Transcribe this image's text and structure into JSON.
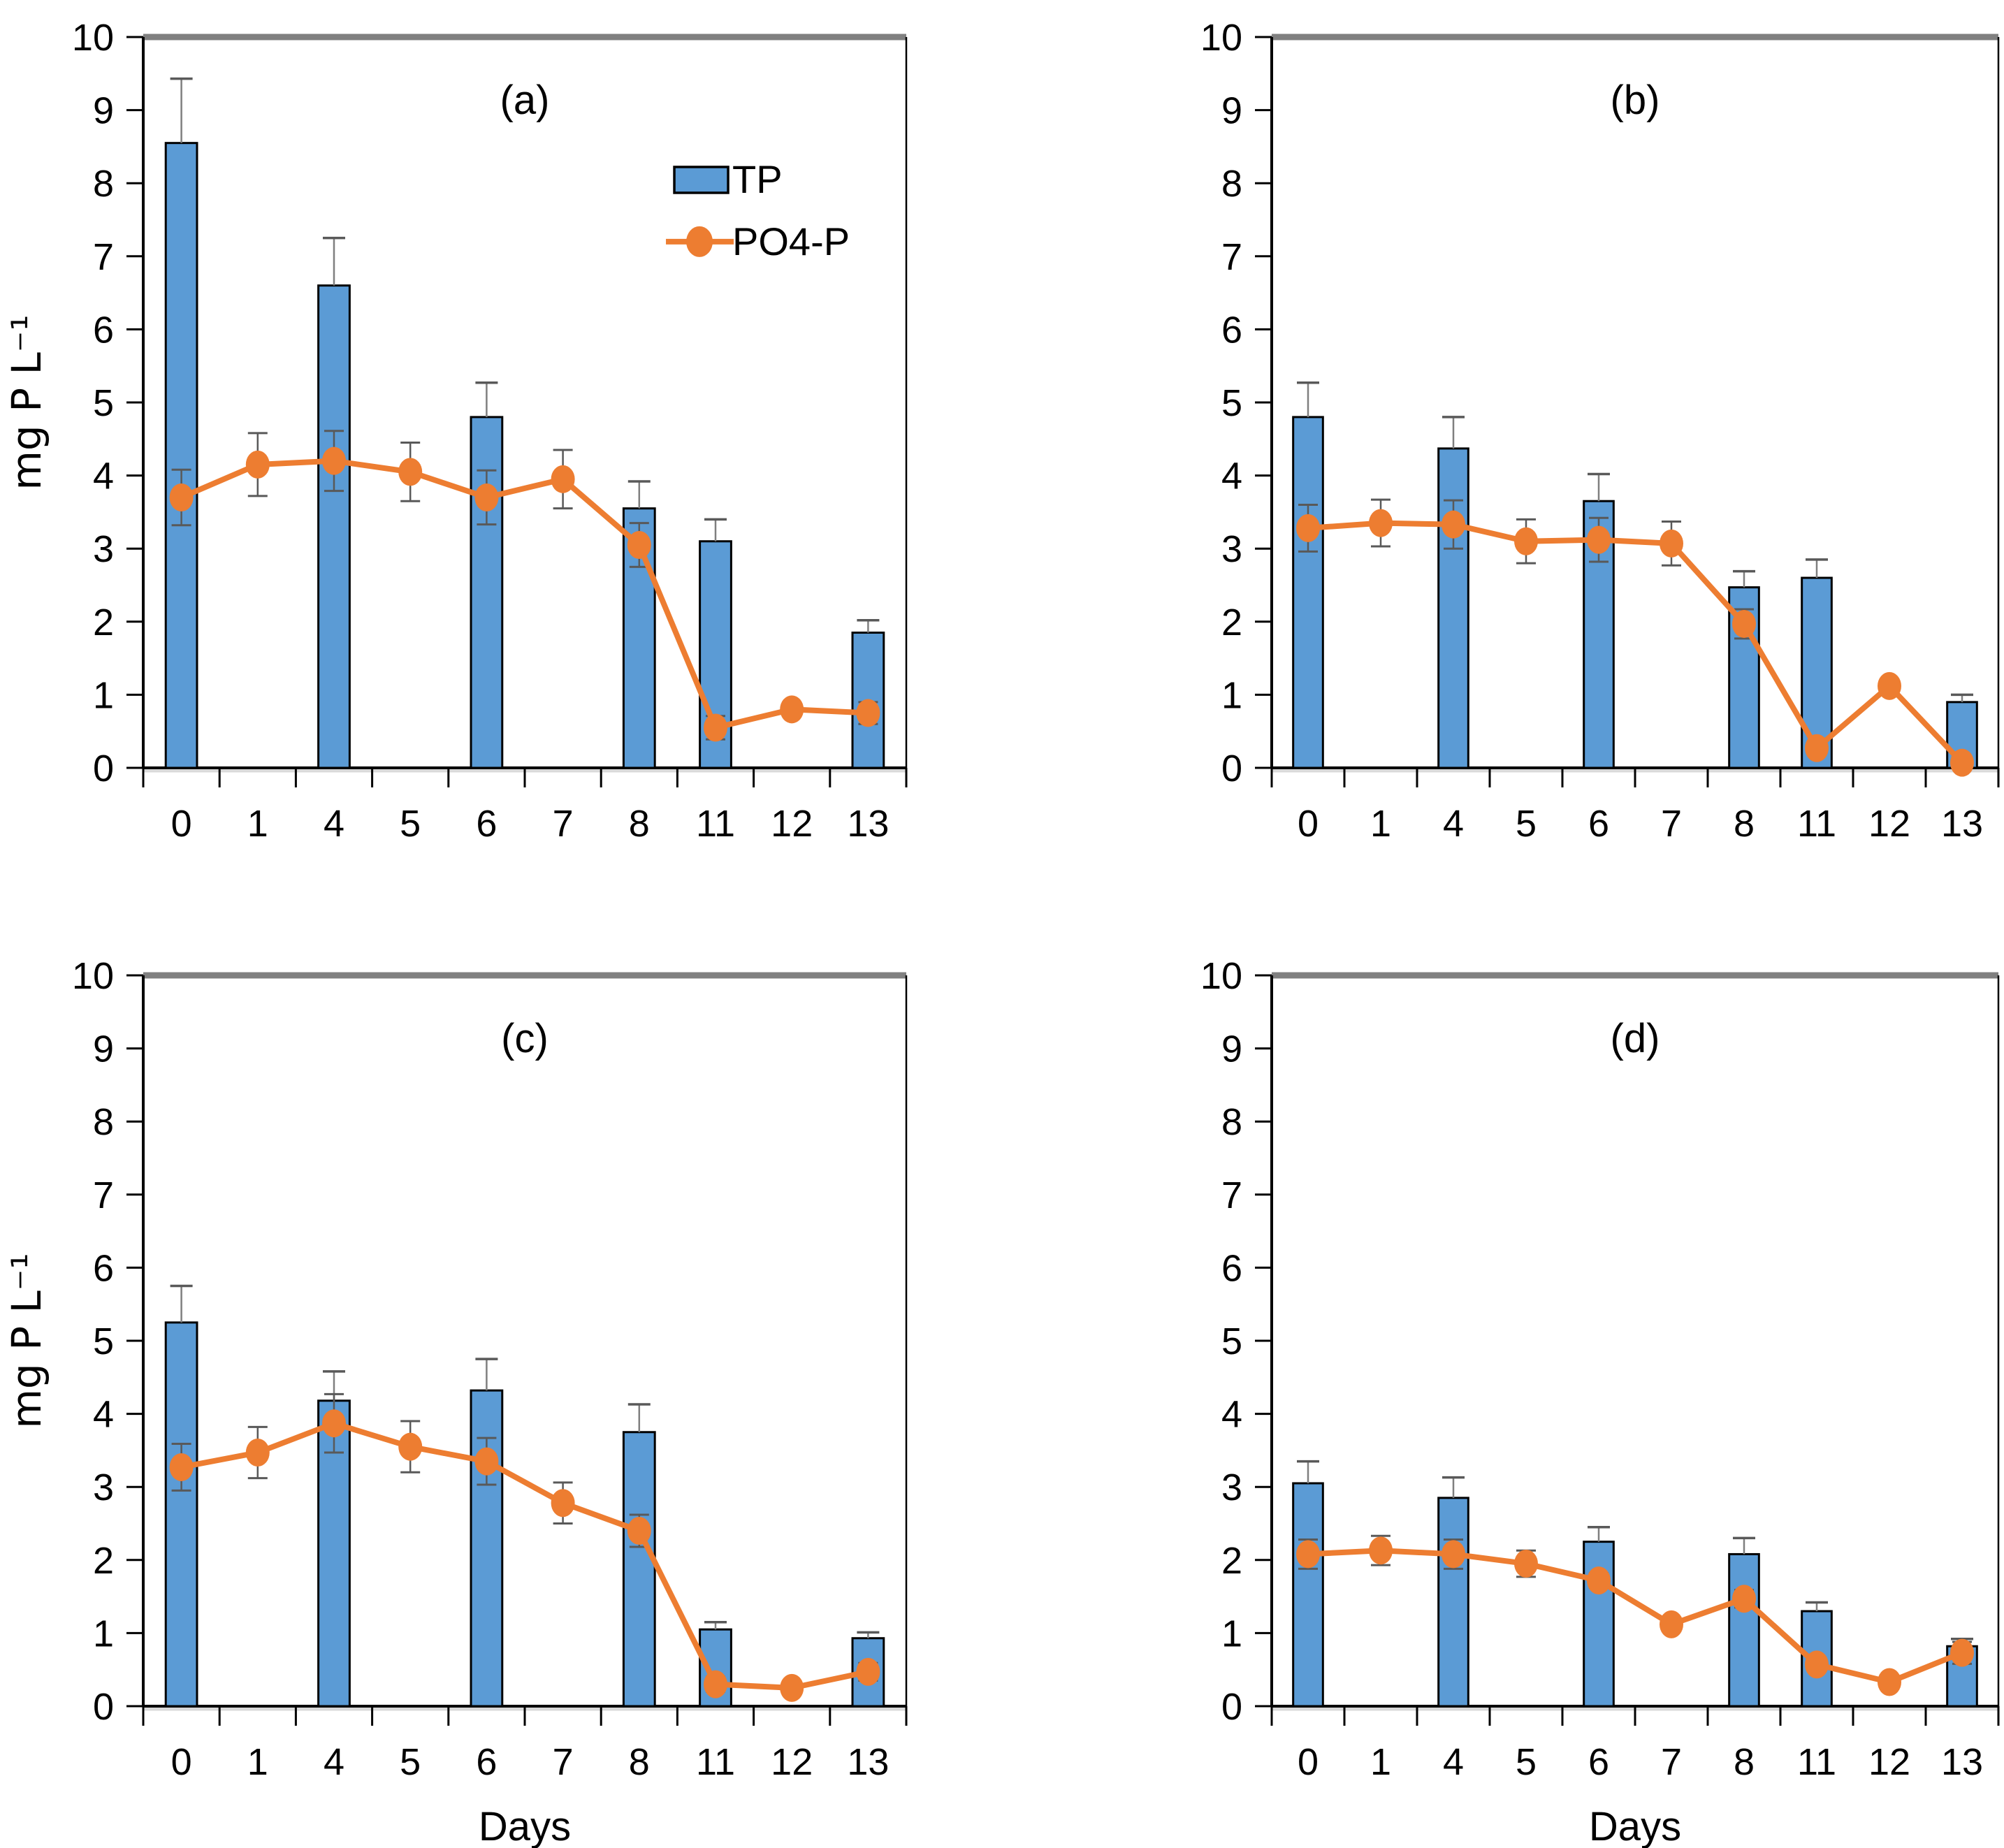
{
  "page": {
    "background": "#ffffff",
    "description": "Four-panel figure (a,b,c,d): TP bars and PO4-P line with error bars vs Days"
  },
  "colors": {
    "tp_fill": "#5B9BD5",
    "tp_border": "#000000",
    "po4": "#ED7D31",
    "error_bar": "#595959",
    "bar_error_line": "#7f7f7f",
    "axis": "#000000",
    "top_border": "#808080",
    "axis_shadow": "#d9d9d9"
  },
  "axis": {
    "y_min": 0,
    "y_max": 10,
    "y_tick_step": 1,
    "y_tick_labels": [
      "0",
      "1",
      "2",
      "3",
      "4",
      "5",
      "6",
      "7",
      "8",
      "9",
      "10"
    ],
    "y_axis_label": "mg P L⁻¹",
    "x_axis_label": "Days",
    "categories": [
      "0",
      "1",
      "4",
      "5",
      "6",
      "7",
      "8",
      "11",
      "12",
      "13"
    ]
  },
  "legend": {
    "position": "inside-top-right-of-panel-a",
    "items": [
      {
        "label": "TP",
        "swatch": "blue-bar"
      },
      {
        "label": "PO4-P",
        "swatch": "orange-line-circle-marker"
      }
    ]
  },
  "chart_data": [
    {
      "type": "bar",
      "title": "(a)",
      "categories": [
        "0",
        "1",
        "4",
        "5",
        "6",
        "7",
        "8",
        "11",
        "12",
        "13"
      ],
      "xlabel": "",
      "ylabel": "mg P L⁻¹",
      "ylim": [
        0,
        10
      ],
      "grid": false,
      "show_y_axis_label": true,
      "show_x_axis_label": false,
      "show_legend": true,
      "series": [
        {
          "name": "TP",
          "type": "bar",
          "values": [
            8.55,
            null,
            6.6,
            null,
            4.8,
            null,
            3.55,
            3.1,
            null,
            1.85
          ],
          "errors": [
            0.88,
            null,
            0.65,
            null,
            0.47,
            null,
            0.37,
            0.3,
            null,
            0.17
          ]
        },
        {
          "name": "PO4-P",
          "type": "line",
          "values": [
            3.7,
            4.15,
            4.2,
            4.05,
            3.7,
            3.95,
            3.05,
            0.55,
            0.8,
            0.75
          ],
          "errors": [
            0.38,
            0.43,
            0.41,
            0.4,
            0.37,
            0.4,
            0.3,
            0.16,
            0,
            0.15
          ]
        }
      ]
    },
    {
      "type": "bar",
      "title": "(b)",
      "categories": [
        "0",
        "1",
        "4",
        "5",
        "6",
        "7",
        "8",
        "11",
        "12",
        "13"
      ],
      "xlabel": "",
      "ylabel": "",
      "ylim": [
        0,
        10
      ],
      "grid": false,
      "show_y_axis_label": false,
      "show_x_axis_label": false,
      "show_legend": false,
      "series": [
        {
          "name": "TP",
          "type": "bar",
          "values": [
            4.8,
            null,
            4.37,
            null,
            3.65,
            null,
            2.47,
            2.6,
            null,
            0.9
          ],
          "errors": [
            0.47,
            null,
            0.43,
            null,
            0.37,
            null,
            0.22,
            0.25,
            null,
            0.1
          ]
        },
        {
          "name": "PO4-P",
          "type": "line",
          "values": [
            3.28,
            3.35,
            3.33,
            3.1,
            3.12,
            3.07,
            1.97,
            0.27,
            1.12,
            0.07
          ],
          "errors": [
            0.32,
            0.32,
            0.33,
            0.3,
            0.3,
            0.3,
            0.2,
            0,
            0,
            0
          ]
        }
      ]
    },
    {
      "type": "bar",
      "title": "(c)",
      "categories": [
        "0",
        "1",
        "4",
        "5",
        "6",
        "7",
        "8",
        "11",
        "12",
        "13"
      ],
      "xlabel": "Days",
      "ylabel": "mg P L⁻¹",
      "ylim": [
        0,
        10
      ],
      "grid": false,
      "show_y_axis_label": true,
      "show_x_axis_label": true,
      "show_legend": false,
      "series": [
        {
          "name": "TP",
          "type": "bar",
          "values": [
            5.25,
            null,
            4.18,
            null,
            4.32,
            null,
            3.75,
            1.05,
            null,
            0.93
          ],
          "errors": [
            0.5,
            null,
            0.4,
            null,
            0.43,
            null,
            0.38,
            0.1,
            null,
            0.08
          ]
        },
        {
          "name": "PO4-P",
          "type": "line",
          "values": [
            3.27,
            3.47,
            3.87,
            3.55,
            3.35,
            2.78,
            2.4,
            0.3,
            0.25,
            0.47
          ],
          "errors": [
            0.32,
            0.35,
            0.4,
            0.35,
            0.32,
            0.28,
            0.22,
            0.1,
            0,
            0.12
          ]
        }
      ]
    },
    {
      "type": "bar",
      "title": "(d)",
      "categories": [
        "0",
        "1",
        "4",
        "5",
        "6",
        "7",
        "8",
        "11",
        "12",
        "13"
      ],
      "xlabel": "Days",
      "ylabel": "",
      "ylim": [
        0,
        10
      ],
      "grid": false,
      "show_y_axis_label": false,
      "show_x_axis_label": true,
      "show_legend": false,
      "series": [
        {
          "name": "TP",
          "type": "bar",
          "values": [
            3.05,
            null,
            2.85,
            null,
            2.25,
            null,
            2.08,
            1.3,
            null,
            0.82
          ],
          "errors": [
            0.3,
            null,
            0.28,
            null,
            0.2,
            null,
            0.22,
            0.12,
            null,
            0.1
          ]
        },
        {
          "name": "PO4-P",
          "type": "line",
          "values": [
            2.08,
            2.13,
            2.08,
            1.95,
            1.72,
            1.12,
            1.47,
            0.57,
            0.33,
            0.73
          ],
          "errors": [
            0.2,
            0.2,
            0.2,
            0.18,
            0.1,
            0,
            0.12,
            0,
            0,
            0.15
          ]
        }
      ]
    }
  ]
}
